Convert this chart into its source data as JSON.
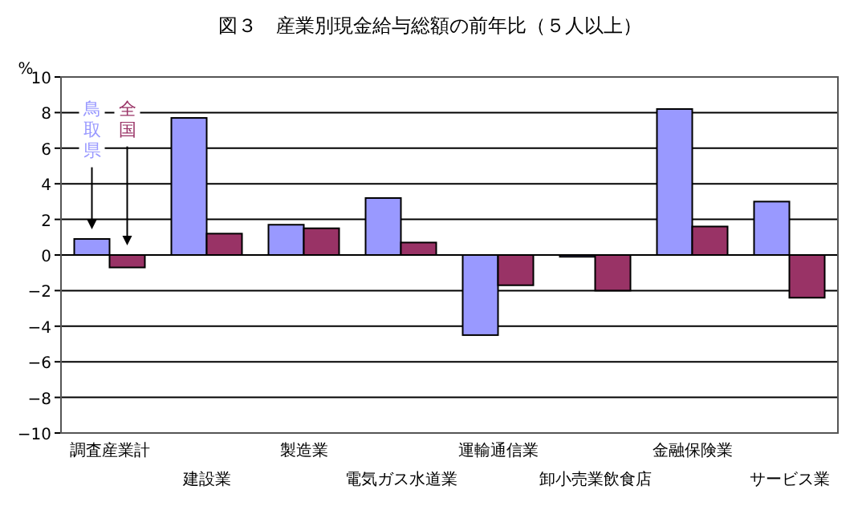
{
  "chart_data": {
    "type": "bar",
    "title": "図３　産業別現金給与総額の前年比（５人以上）",
    "ylabel": "%",
    "categories": [
      "調査産業計",
      "建設業",
      "製造業",
      "電気ガス水道業",
      "運輸通信業",
      "卸小売業飲食店",
      "金融保険業",
      "サービス業"
    ],
    "series": [
      {
        "name": "鳥取県",
        "color": "#9999ff",
        "values": [
          0.9,
          7.7,
          1.7,
          3.2,
          -4.5,
          -0.1,
          8.2,
          3.0
        ]
      },
      {
        "name": "全国",
        "color": "#993366",
        "values": [
          -0.7,
          1.2,
          1.5,
          0.7,
          -1.7,
          -2.0,
          1.6,
          -2.4
        ]
      }
    ],
    "ylim": [
      -10,
      10
    ],
    "yticks": [
      -10,
      -8,
      -6,
      -4,
      -2,
      0,
      2,
      4,
      6,
      8,
      10
    ],
    "grid": "y"
  }
}
